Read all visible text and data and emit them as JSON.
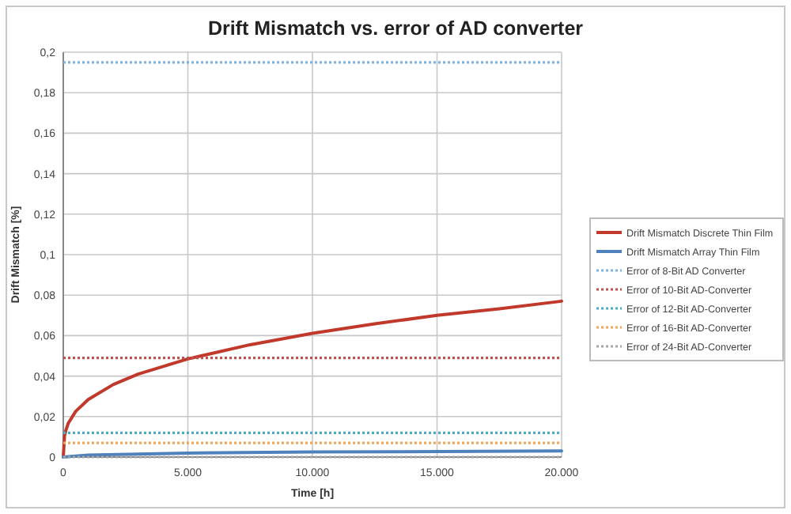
{
  "chart_data": {
    "type": "line",
    "title": "Drift Mismatch vs. error of AD converter",
    "xlabel": "Time [h]",
    "ylabel": "Drift Mismatch [%]",
    "xlim": [
      0,
      20000
    ],
    "xticks": [
      0,
      {
        "value": 5000,
        "label": "5.000"
      },
      {
        "value": 10000,
        "label": "10.000"
      },
      {
        "value": 15000,
        "label": "15.000"
      },
      {
        "value": 20000,
        "label": "20.000"
      }
    ],
    "ylim": [
      0,
      0.2
    ],
    "yticks": [
      0,
      {
        "value": 0.02,
        "label": "0,02"
      },
      {
        "value": 0.04,
        "label": "0,04"
      },
      {
        "value": 0.06,
        "label": "0,06"
      },
      {
        "value": 0.08,
        "label": "0,08"
      },
      {
        "value": 0.1,
        "label": "0,1"
      },
      {
        "value": 0.12,
        "label": "0,12"
      },
      {
        "value": 0.14,
        "label": "0,14"
      },
      {
        "value": 0.16,
        "label": "0,16"
      },
      {
        "value": 0.18,
        "label": "0,18"
      },
      {
        "value": 0.2,
        "label": "0,2"
      }
    ],
    "grid": true,
    "legend": "right",
    "series": [
      {
        "name": "Drift Mismatch Discrete Thin Film",
        "color": "#c0392b",
        "line_style": "solid",
        "x": [
          0,
          50,
          100,
          200,
          500,
          1000,
          2000,
          3000,
          5000,
          7500,
          10000,
          12500,
          15000,
          17500,
          20000
        ],
        "values": [
          0,
          0.0105,
          0.013,
          0.0167,
          0.0226,
          0.0284,
          0.0358,
          0.041,
          0.0485,
          0.0555,
          0.0611,
          0.0658,
          0.07,
          0.0732,
          0.077
        ]
      },
      {
        "name": "Drift Mismatch Array Thin Film",
        "color": "#4f81bd",
        "line_style": "solid",
        "x": [
          0,
          1000,
          5000,
          10000,
          20000
        ],
        "values": [
          0,
          0.001,
          0.002,
          0.0025,
          0.003
        ]
      },
      {
        "name": "Error of 8-Bit AD Converter",
        "color": "#7fb2e5",
        "line_style": "dotted",
        "x": [
          0,
          20000
        ],
        "values": [
          0.195,
          0.195
        ]
      },
      {
        "name": "Error of 10-Bit AD-Converter",
        "color": "#c0504d",
        "line_style": "dotted",
        "x": [
          0,
          20000
        ],
        "values": [
          0.049,
          0.049
        ]
      },
      {
        "name": "Error of 12-Bit AD-Converter",
        "color": "#4bacc6",
        "line_style": "dotted",
        "x": [
          0,
          20000
        ],
        "values": [
          0.012,
          0.012
        ]
      },
      {
        "name": "Error of 16-Bit AD-Converter",
        "color": "#f2a65a",
        "line_style": "dotted",
        "x": [
          0,
          20000
        ],
        "values": [
          0.007,
          0.007
        ]
      },
      {
        "name": "Error of 24-Bit AD-Converter",
        "color": "#a6a6a6",
        "line_style": "dotted",
        "x": [
          0,
          20000
        ],
        "values": [
          0,
          0
        ]
      }
    ]
  }
}
